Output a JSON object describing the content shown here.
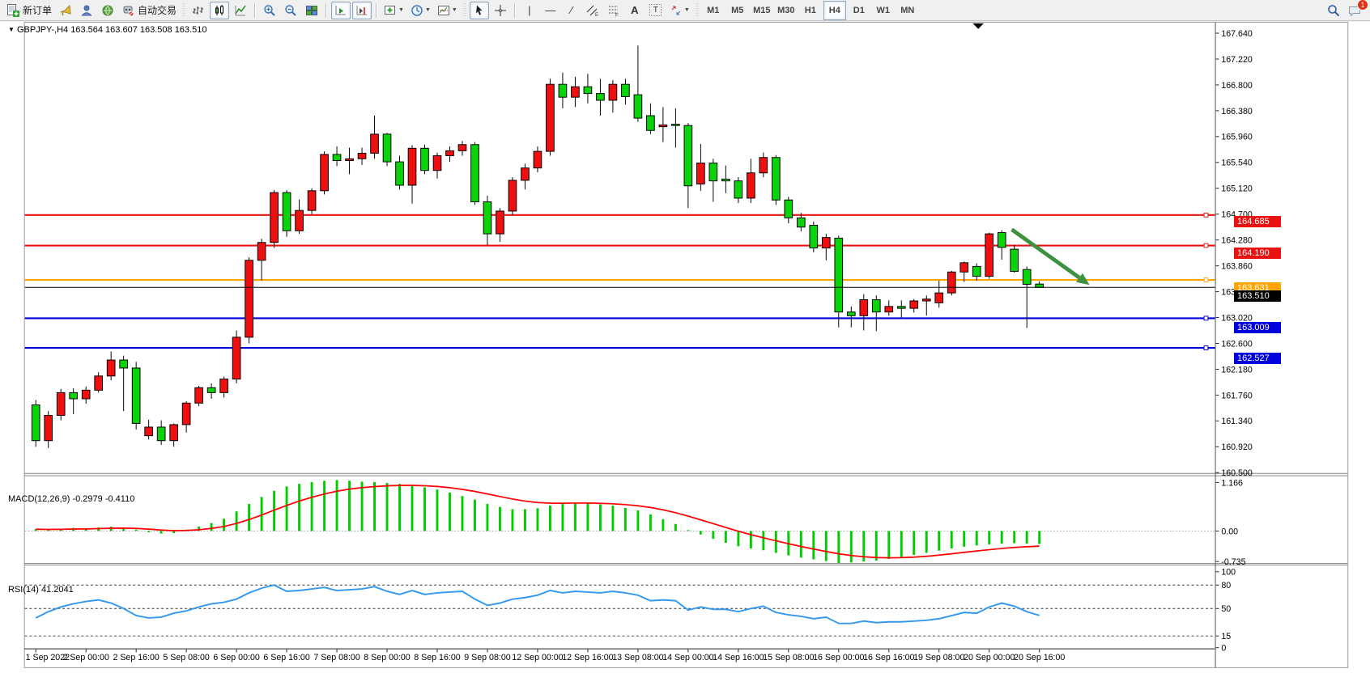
{
  "toolbar": {
    "new_order": {
      "label": "新订单"
    },
    "auto_trading": {
      "label": "自动交易"
    },
    "timeframes": [
      "M1",
      "M5",
      "M15",
      "M30",
      "H1",
      "H4",
      "D1",
      "W1",
      "MN"
    ],
    "pressed_buttons": [
      "candlestick-chart-button",
      "auto-scroll-button",
      "chart-shift-button",
      "cursor-button",
      "timeframe-h4"
    ],
    "notifications_badge": "1",
    "trendline_glyph": "∕",
    "vline_glyph": "|",
    "hline_glyph": "—",
    "text_glyph": "A",
    "label_glyph": "T",
    "channel_sub": "E",
    "fibo_sub": "F"
  },
  "chart": {
    "expander_glyph": "▼",
    "symbol": "GBPJPY-,H4",
    "ohlc_text": "163.564 163.607 163.508 163.510",
    "macd_label": "MACD(12,26,9) -0.2979 -0.4110",
    "rsi_label": "RSI(14) 41.2041"
  },
  "chart_data": [
    {
      "type": "candlestick",
      "title": "GBPJPY-,H4",
      "timeframe": "H4",
      "up_color": "#ee1010",
      "down_color": "#0bd30b",
      "ylim": [
        160.5,
        167.64
      ],
      "y_ticks": [
        "167.640",
        "167.220",
        "166.800",
        "166.380",
        "165.960",
        "165.540",
        "165.120",
        "164.700",
        "164.280",
        "163.860",
        "163.440",
        "163.020",
        "162.600",
        "162.180",
        "161.760",
        "161.340",
        "160.920",
        "160.500"
      ],
      "x_labels": [
        "1 Sep 2022",
        "2 Sep 00:00",
        "2 Sep 16:00",
        "5 Sep 08:00",
        "6 Sep 00:00",
        "6 Sep 16:00",
        "7 Sep 08:00",
        "8 Sep 00:00",
        "8 Sep 16:00",
        "9 Sep 08:00",
        "12 Sep 00:00",
        "12 Sep 16:00",
        "13 Sep 08:00",
        "14 Sep 00:00",
        "14 Sep 16:00",
        "15 Sep 08:00",
        "16 Sep 00:00",
        "16 Sep 16:00",
        "19 Sep 08:00",
        "20 Sep 00:00",
        "20 Sep 16:00"
      ],
      "bars_per_label": 4,
      "current_price": "163.510",
      "hlines": [
        {
          "price": 164.685,
          "color": "#e81212",
          "label": "164.685"
        },
        {
          "price": 164.19,
          "color": "#e81212",
          "label": "164.190"
        },
        {
          "price": 163.631,
          "color": "#ffa500",
          "label": "163.631"
        },
        {
          "price": 163.009,
          "color": "#0000dd",
          "label": "163.009"
        },
        {
          "price": 162.527,
          "color": "#0000dd",
          "label": "162.527"
        }
      ],
      "annotation_arrow": {
        "from_x_bar": 77.8,
        "from_price": 164.45,
        "to_x_bar": 84.0,
        "to_price": 163.55,
        "color": "#3d9140"
      },
      "ohlc": [
        [
          161.6,
          161.68,
          160.92,
          161.02
        ],
        [
          161.02,
          161.5,
          160.9,
          161.43
        ],
        [
          161.43,
          161.86,
          161.35,
          161.8
        ],
        [
          161.8,
          161.87,
          161.45,
          161.7
        ],
        [
          161.7,
          161.9,
          161.62,
          161.84
        ],
        [
          161.84,
          162.13,
          161.8,
          162.07
        ],
        [
          162.07,
          162.47,
          162.0,
          162.33
        ],
        [
          162.33,
          162.4,
          161.5,
          162.2
        ],
        [
          162.2,
          162.3,
          161.2,
          161.3
        ],
        [
          161.1,
          161.36,
          161.04,
          161.24
        ],
        [
          161.24,
          161.35,
          160.95,
          161.02
        ],
        [
          161.02,
          161.3,
          160.92,
          161.28
        ],
        [
          161.28,
          161.66,
          161.15,
          161.63
        ],
        [
          161.63,
          161.91,
          161.58,
          161.88
        ],
        [
          161.88,
          161.95,
          161.7,
          161.8
        ],
        [
          161.8,
          162.06,
          161.72,
          162.02
        ],
        [
          162.02,
          162.81,
          161.95,
          162.7
        ],
        [
          162.7,
          164.0,
          162.6,
          163.95
        ],
        [
          163.95,
          164.3,
          163.62,
          164.24
        ],
        [
          164.24,
          165.09,
          164.15,
          165.05
        ],
        [
          165.05,
          165.09,
          164.33,
          164.43
        ],
        [
          164.43,
          164.94,
          164.38,
          164.76
        ],
        [
          164.76,
          165.12,
          164.7,
          165.08
        ],
        [
          165.08,
          165.72,
          165.02,
          165.67
        ],
        [
          165.67,
          165.8,
          165.48,
          165.57
        ],
        [
          165.57,
          165.78,
          165.35,
          165.6
        ],
        [
          165.6,
          165.78,
          165.5,
          165.69
        ],
        [
          165.69,
          166.3,
          165.6,
          166.0
        ],
        [
          166.0,
          166.02,
          165.48,
          165.55
        ],
        [
          165.55,
          165.65,
          165.1,
          165.17
        ],
        [
          165.17,
          165.82,
          164.87,
          165.77
        ],
        [
          165.77,
          165.83,
          165.35,
          165.41
        ],
        [
          165.41,
          165.7,
          165.28,
          165.65
        ],
        [
          165.65,
          165.8,
          165.55,
          165.73
        ],
        [
          165.73,
          165.89,
          165.65,
          165.83
        ],
        [
          165.83,
          165.87,
          164.85,
          164.9
        ],
        [
          164.9,
          165.0,
          164.2,
          164.38
        ],
        [
          164.38,
          164.8,
          164.25,
          164.75
        ],
        [
          164.75,
          165.3,
          164.68,
          165.25
        ],
        [
          165.25,
          165.52,
          165.1,
          165.45
        ],
        [
          165.45,
          165.8,
          165.38,
          165.72
        ],
        [
          165.72,
          166.9,
          165.65,
          166.81
        ],
        [
          166.81,
          167.0,
          166.42,
          166.6
        ],
        [
          166.6,
          166.93,
          166.44,
          166.77
        ],
        [
          166.77,
          166.98,
          166.5,
          166.66
        ],
        [
          166.66,
          166.9,
          166.3,
          166.55
        ],
        [
          166.55,
          166.88,
          166.35,
          166.81
        ],
        [
          166.81,
          166.9,
          166.48,
          166.61
        ],
        [
          166.64,
          167.44,
          166.2,
          166.26
        ],
        [
          166.3,
          166.5,
          166.0,
          166.06
        ],
        [
          166.12,
          166.44,
          165.87,
          166.15
        ],
        [
          166.16,
          166.42,
          165.78,
          166.14
        ],
        [
          166.14,
          166.18,
          164.8,
          165.16
        ],
        [
          165.19,
          165.84,
          165.08,
          165.53
        ],
        [
          165.53,
          165.6,
          164.9,
          165.24
        ],
        [
          165.27,
          165.49,
          165.04,
          165.24
        ],
        [
          165.24,
          165.3,
          164.88,
          164.96
        ],
        [
          164.96,
          165.6,
          164.88,
          165.37
        ],
        [
          165.37,
          165.7,
          165.3,
          165.62
        ],
        [
          165.62,
          165.66,
          164.85,
          164.93
        ],
        [
          164.93,
          164.98,
          164.55,
          164.64
        ],
        [
          164.64,
          164.72,
          164.42,
          164.49
        ],
        [
          164.52,
          164.58,
          164.08,
          164.15
        ],
        [
          164.15,
          164.38,
          163.95,
          164.32
        ],
        [
          164.31,
          164.35,
          162.86,
          163.11
        ],
        [
          163.11,
          163.2,
          162.86,
          163.05
        ],
        [
          163.05,
          163.4,
          162.81,
          163.31
        ],
        [
          163.31,
          163.38,
          162.8,
          163.11
        ],
        [
          163.11,
          163.3,
          163.05,
          163.2
        ],
        [
          163.2,
          163.3,
          163.02,
          163.17
        ],
        [
          163.17,
          163.32,
          163.1,
          163.29
        ],
        [
          163.29,
          163.38,
          163.05,
          163.32
        ],
        [
          163.26,
          163.62,
          163.18,
          163.42
        ],
        [
          163.42,
          163.78,
          163.38,
          163.76
        ],
        [
          163.76,
          163.93,
          163.6,
          163.91
        ],
        [
          163.85,
          163.9,
          163.62,
          163.69
        ],
        [
          163.69,
          164.4,
          163.65,
          164.38
        ],
        [
          164.4,
          164.44,
          163.96,
          164.16
        ],
        [
          164.13,
          164.2,
          163.75,
          163.77
        ],
        [
          163.8,
          163.85,
          162.85,
          163.56
        ],
        [
          163.564,
          163.607,
          163.508,
          163.51
        ]
      ]
    },
    {
      "type": "bar",
      "name": "MACD(12,26,9)",
      "current_values": "-0.2979 -0.4110",
      "histogram_color": "#00cc00",
      "signal_color": "#ff0000",
      "ylim": [
        -0.735,
        1.166
      ],
      "y_ticks": [
        "1.166",
        "0.00",
        "-0.735"
      ],
      "values": [
        0.04,
        0.02,
        0.05,
        0.07,
        0.06,
        0.08,
        0.1,
        0.08,
        0.03,
        -0.03,
        -0.06,
        -0.05,
        0.03,
        0.1,
        0.18,
        0.28,
        0.45,
        0.62,
        0.78,
        0.92,
        1.02,
        1.08,
        1.12,
        1.15,
        1.166,
        1.15,
        1.13,
        1.12,
        1.1,
        1.08,
        1.05,
        1.0,
        0.95,
        0.88,
        0.8,
        0.72,
        0.62,
        0.55,
        0.5,
        0.5,
        0.52,
        0.58,
        0.63,
        0.65,
        0.64,
        0.61,
        0.58,
        0.53,
        0.47,
        0.38,
        0.27,
        0.16,
        0.02,
        -0.08,
        -0.18,
        -0.27,
        -0.35,
        -0.4,
        -0.44,
        -0.5,
        -0.56,
        -0.61,
        -0.65,
        -0.69,
        -0.735,
        -0.72,
        -0.7,
        -0.68,
        -0.64,
        -0.6,
        -0.55,
        -0.5,
        -0.45,
        -0.4,
        -0.36,
        -0.33,
        -0.31,
        -0.29,
        -0.28,
        -0.29,
        -0.2979
      ]
    },
    {
      "type": "line",
      "name": "RSI(14)",
      "current_value": "41.2041",
      "line_color": "#3399ee",
      "ylim": [
        0,
        100
      ],
      "levels": [
        80,
        50,
        15
      ],
      "y_ticks": [
        "100",
        "80",
        "50",
        "15",
        "0"
      ],
      "values": [
        38,
        46,
        52,
        56,
        59,
        61,
        57,
        50,
        41,
        38,
        39,
        44,
        47,
        52,
        56,
        58,
        62,
        70,
        76,
        80,
        72,
        73,
        75,
        77,
        73,
        74,
        75,
        78,
        72,
        68,
        73,
        68,
        70,
        71,
        72,
        62,
        54,
        57,
        62,
        64,
        67,
        73,
        70,
        72,
        71,
        70,
        72,
        70,
        67,
        60,
        61,
        60,
        48,
        52,
        49,
        49,
        46,
        50,
        53,
        45,
        42,
        40,
        37,
        39,
        31,
        31,
        34,
        32,
        33,
        33,
        34,
        35,
        37,
        41,
        45,
        44,
        52,
        57,
        53,
        46,
        41.2
      ]
    }
  ]
}
